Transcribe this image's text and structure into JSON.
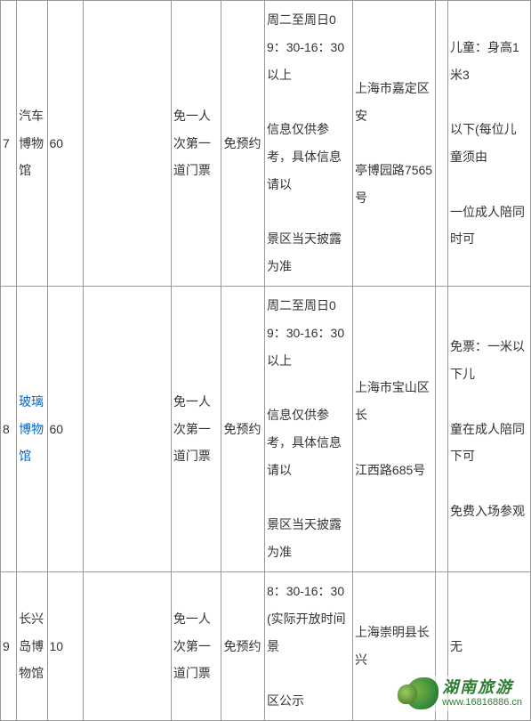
{
  "rows": [
    {
      "num": "7",
      "name": "汽车博物馆",
      "name_link": false,
      "price": "60",
      "blank1": "",
      "benefit": "免一人次第一道门票",
      "booking": "免预约",
      "hours": "周二至周日09：30-16：30以上\n\n信息仅供参考，具体信息请以\n\n景区当天披露为准",
      "address": "上海市嘉定区安\n\n亭博园路7565号",
      "blank2": "",
      "child": "儿童：身高1米3\n\n以下(每位儿童须由\n\n一位成人陪同时可"
    },
    {
      "num": "8",
      "name": "玻璃博物馆",
      "name_link": true,
      "price": "60",
      "blank1": "",
      "benefit": "免一人次第一道门票",
      "booking": "免预约",
      "hours": "周二至周日09：30-16：30以上\n\n信息仅供参考，具体信息请以\n\n景区当天披露为准",
      "address": "上海市宝山区长\n\n江西路685号",
      "blank2": "",
      "child": "免票：一米以下儿\n\n童在成人陪同下可\n\n免费入场参观"
    },
    {
      "num": "9",
      "name": "长兴岛博物馆",
      "name_link": false,
      "price": "10",
      "blank1": "",
      "benefit": "免一人次第一道门票",
      "booking": "免预约",
      "hours": "8：30-16：30(实际开放时间景\n\n区公示",
      "address": "上海崇明县长兴",
      "blank2": "",
      "child": "无"
    }
  ],
  "logo": {
    "main": "湖南旅游",
    "sub": "www.16816886.cn"
  }
}
